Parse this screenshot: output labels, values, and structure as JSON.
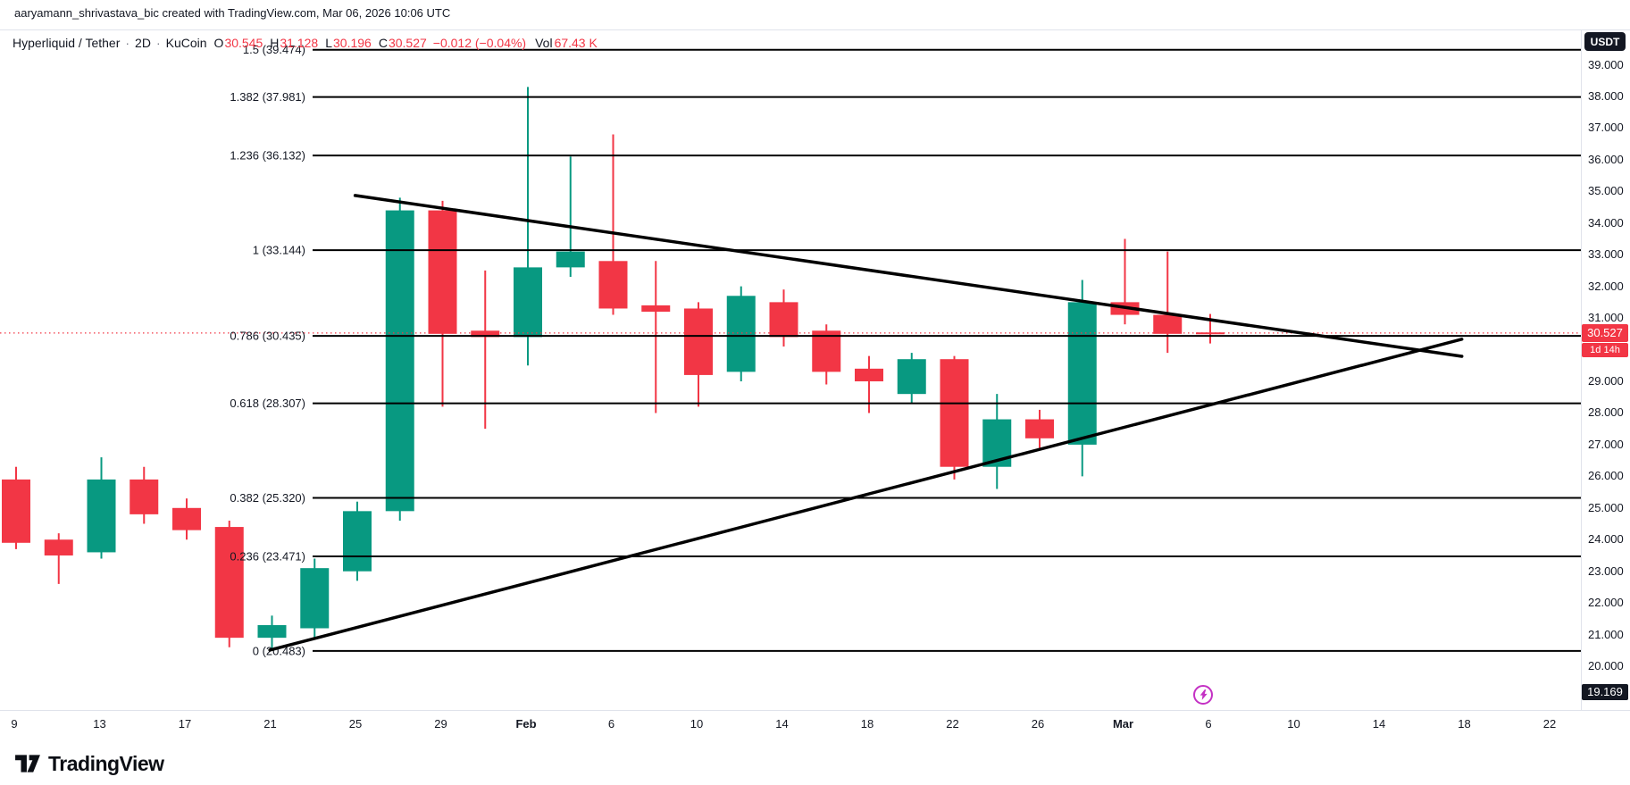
{
  "attribution": "aaryamann_shrivastava_bic created with TradingView.com, Mar 06, 2026 10:06 UTC",
  "header": {
    "symbol": "Hyperliquid / Tether",
    "separator": "·",
    "interval": "2D",
    "exchange": "KuCoin",
    "ohlc": [
      {
        "label": "O",
        "value": "30.545"
      },
      {
        "label": "H",
        "value": "31.128"
      },
      {
        "label": "L",
        "value": "30.196"
      },
      {
        "label": "C",
        "value": "30.527"
      }
    ],
    "change": "−0.012 (−0.04%)",
    "volume_label": "Vol",
    "volume_value": "67.43 K"
  },
  "currency_button": "USDT",
  "price_axis": {
    "labels": [
      "39.000",
      "38.000",
      "37.000",
      "36.000",
      "35.000",
      "34.000",
      "33.000",
      "32.000",
      "31.000",
      "29.000",
      "28.000",
      "27.000",
      "26.000",
      "25.000",
      "24.000",
      "23.000",
      "22.000",
      "21.000",
      "20.000"
    ],
    "last_price_label": "30.527",
    "countdown": "1d 14h",
    "low_label": "19.169"
  },
  "time_axis": {
    "labels": [
      {
        "text": "9",
        "major": false
      },
      {
        "text": "13",
        "major": false
      },
      {
        "text": "17",
        "major": false
      },
      {
        "text": "21",
        "major": false
      },
      {
        "text": "25",
        "major": false
      },
      {
        "text": "29",
        "major": false
      },
      {
        "text": "Feb",
        "major": true
      },
      {
        "text": "6",
        "major": false
      },
      {
        "text": "10",
        "major": false
      },
      {
        "text": "14",
        "major": false
      },
      {
        "text": "18",
        "major": false
      },
      {
        "text": "22",
        "major": false
      },
      {
        "text": "26",
        "major": false
      },
      {
        "text": "Mar",
        "major": true
      },
      {
        "text": "6",
        "major": false
      },
      {
        "text": "10",
        "major": false
      },
      {
        "text": "14",
        "major": false
      },
      {
        "text": "18",
        "major": false
      },
      {
        "text": "22",
        "major": false
      }
    ]
  },
  "event_marker": {
    "color": "#C431C4"
  },
  "footer": {
    "brand": "TradingView"
  },
  "chart_data": {
    "type": "candlestick",
    "title": "Hyperliquid / Tether · 2D · KuCoin",
    "up_color": "#089981",
    "down_color": "#F23645",
    "fib_line_color": "#000000",
    "trendline_color": "#000000",
    "last_price": 30.527,
    "last_price_line_color": "#F23645",
    "low_marker": 19.169,
    "price_axis_range": [
      18.6,
      40.1
    ],
    "grid": false,
    "candles": [
      {
        "o": 25.9,
        "h": 26.3,
        "l": 23.7,
        "c": 23.9
      },
      {
        "o": 24.0,
        "h": 24.2,
        "l": 22.6,
        "c": 23.5
      },
      {
        "o": 23.6,
        "h": 26.6,
        "l": 23.4,
        "c": 25.9
      },
      {
        "o": 25.9,
        "h": 26.3,
        "l": 24.5,
        "c": 24.8
      },
      {
        "o": 25.0,
        "h": 25.3,
        "l": 24.0,
        "c": 24.3
      },
      {
        "o": 24.4,
        "h": 24.6,
        "l": 20.6,
        "c": 20.9
      },
      {
        "o": 20.9,
        "h": 21.6,
        "l": 20.5,
        "c": 21.3
      },
      {
        "o": 21.2,
        "h": 23.4,
        "l": 20.9,
        "c": 23.1
      },
      {
        "o": 23.0,
        "h": 25.2,
        "l": 22.7,
        "c": 24.9
      },
      {
        "o": 24.9,
        "h": 34.8,
        "l": 24.6,
        "c": 34.4
      },
      {
        "o": 34.4,
        "h": 34.7,
        "l": 28.2,
        "c": 30.5
      },
      {
        "o": 30.6,
        "h": 32.5,
        "l": 27.5,
        "c": 30.4
      },
      {
        "o": 30.4,
        "h": 38.3,
        "l": 29.5,
        "c": 32.6
      },
      {
        "o": 32.6,
        "h": 36.1,
        "l": 32.3,
        "c": 33.1
      },
      {
        "o": 32.8,
        "h": 36.8,
        "l": 31.1,
        "c": 31.3
      },
      {
        "o": 31.4,
        "h": 32.8,
        "l": 28.0,
        "c": 31.2
      },
      {
        "o": 31.3,
        "h": 31.5,
        "l": 28.2,
        "c": 29.2
      },
      {
        "o": 29.3,
        "h": 32.0,
        "l": 29.0,
        "c": 31.7
      },
      {
        "o": 31.5,
        "h": 31.9,
        "l": 30.1,
        "c": 30.4
      },
      {
        "o": 30.6,
        "h": 30.8,
        "l": 28.9,
        "c": 29.3
      },
      {
        "o": 29.4,
        "h": 29.8,
        "l": 28.0,
        "c": 29.0
      },
      {
        "o": 28.6,
        "h": 29.9,
        "l": 28.3,
        "c": 29.7
      },
      {
        "o": 29.7,
        "h": 29.8,
        "l": 25.9,
        "c": 26.3
      },
      {
        "o": 26.3,
        "h": 28.6,
        "l": 25.6,
        "c": 27.8
      },
      {
        "o": 27.8,
        "h": 28.1,
        "l": 26.9,
        "c": 27.2
      },
      {
        "o": 27.0,
        "h": 32.2,
        "l": 26.0,
        "c": 31.5
      },
      {
        "o": 31.5,
        "h": 33.5,
        "l": 30.8,
        "c": 31.1
      },
      {
        "o": 31.1,
        "h": 33.1,
        "l": 29.9,
        "c": 30.5
      },
      {
        "o": 30.545,
        "h": 31.128,
        "l": 30.196,
        "c": 30.527
      }
    ],
    "fib_levels": [
      {
        "label": "1.5 (39.474)",
        "ratio": 1.5,
        "price": 39.474
      },
      {
        "label": "1.382 (37.981)",
        "ratio": 1.382,
        "price": 37.981
      },
      {
        "label": "1.236 (36.132)",
        "ratio": 1.236,
        "price": 36.132
      },
      {
        "label": "1 (33.144)",
        "ratio": 1,
        "price": 33.144
      },
      {
        "label": "0.786 (30.435)",
        "ratio": 0.786,
        "price": 30.435
      },
      {
        "label": "0.618 (28.307)",
        "ratio": 0.618,
        "price": 28.307
      },
      {
        "label": "0.382 (25.320)",
        "ratio": 0.382,
        "price": 25.32
      },
      {
        "label": "0.236 (23.471)",
        "ratio": 0.236,
        "price": 23.471
      },
      {
        "label": "0 (20.483)",
        "ratio": 0,
        "price": 20.483
      }
    ],
    "trendlines": [
      {
        "name": "upper",
        "bar1": 7.95,
        "price1": 34.87,
        "bar2": 33.9,
        "price2": 29.79
      },
      {
        "name": "lower",
        "bar1": 5.95,
        "price1": 20.51,
        "bar2": 33.9,
        "price2": 30.33
      }
    ]
  }
}
